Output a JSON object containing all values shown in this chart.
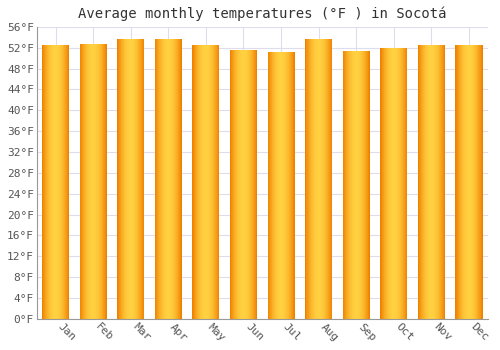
{
  "title": "Average monthly temperatures (°F ) in Socotá",
  "months": [
    "Jan",
    "Feb",
    "Mar",
    "Apr",
    "May",
    "Jun",
    "Jul",
    "Aug",
    "Sep",
    "Oct",
    "Nov",
    "Dec"
  ],
  "values": [
    52.5,
    52.7,
    53.6,
    53.6,
    52.5,
    51.6,
    51.1,
    53.6,
    51.3,
    52.0,
    52.5,
    52.5
  ],
  "ylim": [
    0,
    56
  ],
  "yticks": [
    0,
    4,
    8,
    12,
    16,
    20,
    24,
    28,
    32,
    36,
    40,
    44,
    48,
    52,
    56
  ],
  "bar_color_center": "#FFD040",
  "bar_color_edge": "#F08000",
  "background_color": "#FFFFFF",
  "grid_color": "#DDDDEE",
  "title_fontsize": 10,
  "tick_fontsize": 8
}
